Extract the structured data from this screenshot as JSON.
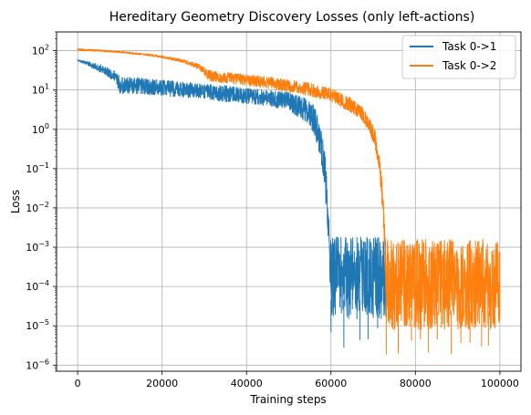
{
  "chart_data": {
    "type": "line",
    "title": "Hereditary Geometry Discovery Losses (only left-actions)",
    "xlabel": "Training steps",
    "ylabel": "Loss",
    "xlim": [
      -5000,
      105000
    ],
    "ylim": [
      7e-07,
      300
    ],
    "yscale": "log",
    "grid": true,
    "legend_position": "top-right",
    "xticks": [
      0,
      20000,
      40000,
      60000,
      80000,
      100000
    ],
    "xtick_labels": [
      "0",
      "20000",
      "40000",
      "60000",
      "80000",
      "100000"
    ],
    "yticks_exp": [
      -6,
      -5,
      -4,
      -3,
      -2,
      -1,
      0,
      1,
      2
    ],
    "series": [
      {
        "name": "Task 0->1",
        "color": "#1f77b4",
        "x": [
          0,
          5000,
          9000,
          10000,
          15000,
          20000,
          25000,
          30000,
          35000,
          40000,
          45000,
          50000,
          54000,
          56000,
          57500,
          58500,
          59200,
          59600,
          59900,
          60000,
          65000,
          70000,
          73000
        ],
        "y": [
          55,
          38,
          22,
          12,
          12,
          11,
          10,
          9,
          8,
          7,
          6.5,
          5.5,
          3.5,
          2,
          0.6,
          0.1,
          0.01,
          0.001,
          0.0003,
          0.00015,
          0.00015,
          0.00015,
          0.00015
        ],
        "noise_low": [
          55,
          30,
          16,
          8,
          8,
          7,
          6.5,
          6,
          5,
          4.5,
          4,
          3,
          1.5,
          0.8,
          0.2,
          0.03,
          0.003,
          0.0003,
          5e-05,
          1.5e-05,
          1.5e-05,
          1.5e-05,
          1.5e-05
        ],
        "noise_high": [
          60,
          46,
          30,
          22,
          20,
          18,
          16,
          14,
          13,
          11,
          10,
          9,
          6,
          4,
          1.2,
          0.3,
          0.03,
          0.003,
          0.0018,
          0.0018,
          0.0018,
          0.0018,
          0.0018
        ]
      },
      {
        "name": "Task 0->2",
        "color": "#ff7f0e",
        "x": [
          0,
          5000,
          10000,
          15000,
          20000,
          25000,
          29000,
          31000,
          35000,
          40000,
          45000,
          50000,
          55000,
          60000,
          64000,
          67000,
          69000,
          70500,
          71500,
          72200,
          72700,
          73000,
          73100,
          80000,
          90000,
          100000
        ],
        "y": [
          105,
          100,
          92,
          82,
          70,
          55,
          38,
          24,
          21,
          18,
          16,
          13,
          11,
          8,
          5,
          3,
          1.5,
          0.6,
          0.15,
          0.02,
          0.002,
          0.0003,
          0.0002,
          0.0002,
          0.0002,
          0.0002
        ],
        "noise_low": [
          100,
          96,
          88,
          78,
          66,
          50,
          32,
          17,
          15,
          13,
          11,
          9,
          7,
          5,
          3,
          1.8,
          0.9,
          0.3,
          0.07,
          0.008,
          0.0008,
          3e-05,
          8e-06,
          8e-06,
          8e-06,
          8e-06
        ],
        "noise_high": [
          112,
          106,
          97,
          87,
          75,
          60,
          44,
          32,
          28,
          25,
          22,
          18,
          15,
          11,
          7,
          4.2,
          2.2,
          0.9,
          0.25,
          0.04,
          0.004,
          0.0016,
          0.0016,
          0.0016,
          0.0016,
          0.0016
        ]
      }
    ]
  }
}
